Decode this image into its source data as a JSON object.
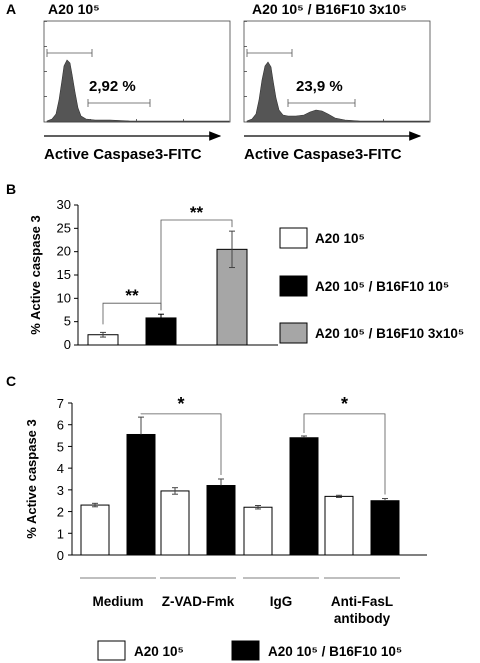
{
  "colors": {
    "black_bar": "#000000",
    "gray_bar": "#a6a6a6",
    "white_bar": "#ffffff",
    "histogram": "#555555"
  },
  "panel_a": {
    "label": "A",
    "histograms": [
      {
        "title": "A20 10⁵",
        "percent": "2,92 %",
        "xlabel": "Active Caspase3-FITC"
      },
      {
        "title": "A20 10⁵ / B16F10 3x10⁵",
        "percent": "23,9 %",
        "xlabel": "Active Caspase3-FITC"
      }
    ]
  },
  "chart_data": [
    {
      "panel": "B",
      "type": "bar",
      "ylabel": "% Active caspase 3",
      "ylim": [
        0,
        30
      ],
      "yticks": [
        0,
        5,
        10,
        15,
        20,
        25,
        30
      ],
      "grid": false,
      "series": [
        {
          "name": "A20 10⁵",
          "value": 2.2,
          "error": 0.5,
          "color": "#ffffff"
        },
        {
          "name": "A20 10⁵ / B16F10 10⁵",
          "value": 5.8,
          "error": 0.8,
          "color": "#000000"
        },
        {
          "name": "A20 10⁵ / B16F10 3x10⁵",
          "value": 20.5,
          "error": 3.9,
          "color": "#a6a6a6"
        }
      ],
      "significance": [
        {
          "from": 0,
          "to": 1,
          "label": "**"
        },
        {
          "from": 1,
          "to": 2,
          "label": "**"
        }
      ],
      "legend_position": "right"
    },
    {
      "panel": "C",
      "type": "bar",
      "ylabel": "% Active caspase 3",
      "ylim": [
        0,
        7
      ],
      "yticks": [
        0,
        1,
        2,
        3,
        4,
        5,
        6,
        7
      ],
      "grid": false,
      "categories": [
        "Medium",
        "Z-VAD-Fmk",
        "IgG",
        "Anti-FasL antibody"
      ],
      "series": [
        {
          "name": "A20 10⁵",
          "color": "#ffffff",
          "values": [
            2.3,
            2.95,
            2.2,
            2.7
          ],
          "errors": [
            0.08,
            0.15,
            0.08,
            0.05
          ]
        },
        {
          "name": "A20 10⁵ / B16F10 10⁵",
          "color": "#000000",
          "values": [
            5.55,
            3.2,
            5.4,
            2.5
          ],
          "errors": [
            0.8,
            0.3,
            0.08,
            0.1
          ]
        }
      ],
      "significance": [
        {
          "category": 0,
          "to": 1,
          "label": "*"
        },
        {
          "category": 2,
          "to": 3,
          "label": "*"
        }
      ],
      "legend_position": "bottom"
    }
  ]
}
